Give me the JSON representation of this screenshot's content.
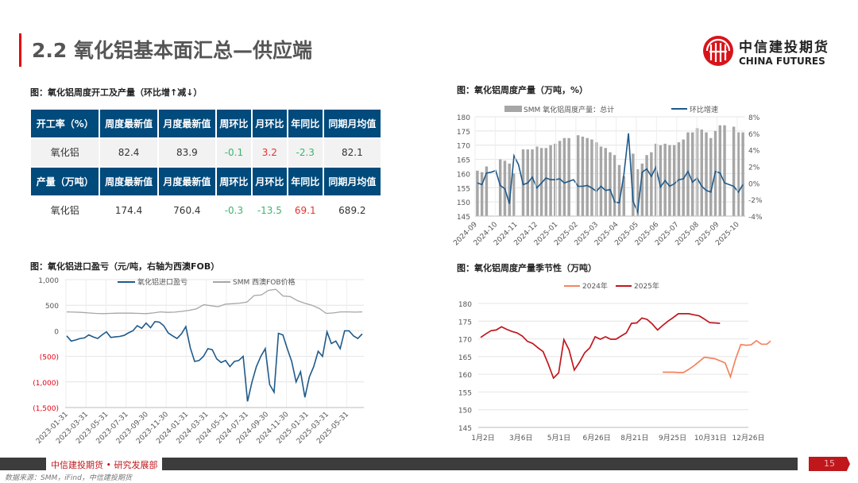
{
  "header": {
    "title": "2.2 氧化铝基本面汇总—供应端",
    "logo_cn": "中信建投期货",
    "logo_en": "CHINA FUTURES"
  },
  "table": {
    "caption": "图：氧化铝周度开工及产量（环比增↑减↓）",
    "rows": [
      {
        "type": "head",
        "cells": [
          "开工率（%）",
          "周度最新值",
          "月度最新值",
          "周环比",
          "月环比",
          "年同比",
          "同期月均值"
        ]
      },
      {
        "type": "data",
        "cells": [
          "氧化铝",
          "82.4",
          "83.9",
          "-0.1",
          "3.2",
          "-2.3",
          "82.1"
        ],
        "colors": [
          "",
          "",
          "",
          "g",
          "r",
          "g",
          ""
        ]
      },
      {
        "type": "head",
        "cells": [
          "产量（万吨）",
          "周度最新值",
          "月度最新值",
          "周环比",
          "月环比",
          "年同比",
          "同期月均值"
        ]
      },
      {
        "type": "data",
        "cells": [
          "氧化铝",
          "174.4",
          "760.4",
          "-0.3",
          "-13.5",
          "69.1",
          "689.2"
        ],
        "colors": [
          "",
          "",
          "",
          "g",
          "g",
          "r",
          ""
        ]
      }
    ]
  },
  "chart_data": [
    {
      "id": "weekly",
      "type": "bar+line",
      "title": "图：氧化铝周度产量（万吨，%）",
      "legend": [
        "SMM 氧化铝周度产量：总计",
        "环比增速"
      ],
      "ylim": [
        145,
        180
      ],
      "yticks": [
        145,
        150,
        155,
        160,
        165,
        170,
        175,
        180
      ],
      "y2lim": [
        -4,
        8
      ],
      "y2ticks": [
        "-4%",
        "-2%",
        "0%",
        "2%",
        "4%",
        "6%",
        "8%"
      ],
      "xticks": [
        "2024-09",
        "2024-10",
        "2024-11",
        "2024-12",
        "2025-01",
        "2025-02",
        "2025-03",
        "2025-04",
        "2025-05",
        "2025-06",
        "2025-07",
        "2025-08",
        "2025-09",
        "2025-10"
      ],
      "bars": [
        161,
        160.5,
        162.5,
        null,
        null,
        165,
        164.5,
        163.5,
        160,
        null,
        168.5,
        168.5,
        168.5,
        169.5,
        169,
        169,
        170,
        170.5,
        171.5,
        172.5,
        172.5,
        null,
        173.5,
        173,
        172.5,
        172,
        171,
        169.5,
        169,
        167.5,
        166.5,
        163,
        159,
        null,
        167,
        161.5,
        163.5,
        166.5,
        167.5,
        170.5,
        170,
        170.5,
        170,
        170,
        171,
        172,
        174.5,
        174.5,
        176,
        175.5,
        174.5,
        172.5,
        175,
        177,
        177,
        null,
        176.5,
        174.5,
        174.5
      ],
      "line": [
        0,
        -0.2,
        1.2,
        1.3,
        1.5,
        -0.3,
        -0.7,
        -2.5,
        3.3,
        2.2,
        -0.2,
        0,
        0.7,
        -0.6,
        0,
        0.6,
        0.4,
        0.4,
        0.5,
        0,
        0.2,
        0.4,
        -0.4,
        -0.4,
        -0.3,
        -0.6,
        -1,
        -0.4,
        -0.9,
        -0.8,
        -2.3,
        -2.4,
        1,
        6,
        -2.2,
        -3.5,
        1.3,
        1.7,
        0.8,
        1.9,
        -0.5,
        0.3,
        -0.4,
        -0.1,
        0.4,
        0.5,
        1.4,
        0.1,
        0.6,
        -0.4,
        -0.9,
        -1.1,
        1.4,
        1.2,
        0,
        -0.2,
        -0.4,
        -1.1,
        -0.2
      ],
      "colors": {
        "bar": "#a6a6a6",
        "line": "#1f5a8a"
      }
    },
    {
      "id": "import",
      "type": "line",
      "title": "图：氧化铝进口盈亏（元/吨，右轴为西澳FOB）",
      "legend": [
        "氧化铝进口盈亏",
        "SMM 西澳FOB价格"
      ],
      "ylim": [
        -1500,
        1000
      ],
      "yticks": [
        "(1,500)",
        "(1,000)",
        "(500)",
        "0",
        "500",
        "1,000"
      ],
      "xticks": [
        "2023-01-31",
        "2023-03-31",
        "2023-05-31",
        "2023-07-31",
        "2023-09-30",
        "2023-11-30",
        "2024-01-31",
        "2024-03-31",
        "2024-05-31",
        "2024-07-31",
        "2024-09-30",
        "2024-11-30",
        "2025-01-31",
        "2025-03-31",
        "2025-05-31"
      ],
      "series": [
        {
          "name": "氧化铝进口盈亏",
          "color": "#1f5a8a",
          "values": [
            -100,
            -200,
            -180,
            -150,
            -140,
            -80,
            -120,
            -150,
            -80,
            -20,
            -130,
            -120,
            -110,
            -90,
            -40,
            0,
            100,
            50,
            150,
            60,
            180,
            170,
            100,
            -40,
            -100,
            -150,
            -60,
            80,
            -330,
            -600,
            -580,
            -500,
            -350,
            -370,
            -550,
            -620,
            -580,
            -700,
            -600,
            -580,
            -500,
            -1380,
            -1000,
            -700,
            -500,
            -350,
            -1050,
            -1200,
            -50,
            -80,
            -350,
            -600,
            -1000,
            -800,
            -1300,
            -900,
            -700,
            -400,
            -500,
            -20,
            -250,
            -200,
            -350,
            0,
            0,
            -100,
            -150,
            -60
          ]
        },
        {
          "name": "SMM 西澳FOB价格",
          "color": "#a6a6a6",
          "values": [
            370,
            365,
            360,
            350,
            340,
            335,
            340,
            345,
            345,
            345,
            340,
            335,
            350,
            370,
            360,
            365,
            380,
            400,
            430,
            510,
            490,
            470,
            520,
            530,
            540,
            560,
            690,
            700,
            790,
            810,
            680,
            670,
            590,
            540,
            500,
            440,
            340,
            350,
            370,
            370,
            365,
            370
          ]
        }
      ]
    },
    {
      "id": "seasonal",
      "type": "line",
      "title": "图：氧化铝周度产量季节性（万吨）",
      "legend": [
        "2024年",
        "2025年"
      ],
      "ylim": [
        145,
        180
      ],
      "yticks": [
        145,
        150,
        155,
        160,
        165,
        170,
        175,
        180
      ],
      "xticks": [
        "1月2日",
        "3月6日",
        "5月1日",
        "6月26日",
        "8月21日",
        "9月25日",
        "10月31日",
        "12月26日"
      ],
      "weeks": 52,
      "series": [
        {
          "name": "2024年",
          "color": "#f4845f",
          "start": 35,
          "values": [
            160.6,
            160.6,
            160.6,
            160.5,
            160.5,
            161.4,
            162.4,
            163.6,
            164.8,
            164.6,
            164.4,
            163.8,
            163.2,
            159.3,
            164.3,
            168.4,
            168.2,
            168.3,
            169.5,
            168.5,
            168.5,
            169.7
          ]
        },
        {
          "name": "2025年",
          "color": "#c0171c",
          "start": 0,
          "values": [
            170.4,
            171.4,
            172.3,
            172.5,
            173.4,
            172.7,
            172.1,
            171.7,
            170.8,
            169.3,
            168.7,
            167.5,
            166.4,
            162.9,
            158.9,
            160.4,
            169.8,
            166.9,
            161.2,
            163.4,
            166.1,
            167.5,
            170.6,
            169.9,
            170.6,
            169.9,
            169.9,
            170.8,
            171.7,
            174.4,
            174.5,
            175.9,
            175.5,
            174.2,
            172.5,
            173.8,
            175.0,
            176.0,
            177.1,
            177.1,
            177.1,
            176.8,
            176.5,
            175.6,
            174.6,
            174.5,
            174.4
          ]
        }
      ]
    }
  ],
  "footer": {
    "brand": "中信建投期货 • 研究发展部",
    "page": "15",
    "source": "数据来源：SMM，iFind，中信建投期货"
  }
}
